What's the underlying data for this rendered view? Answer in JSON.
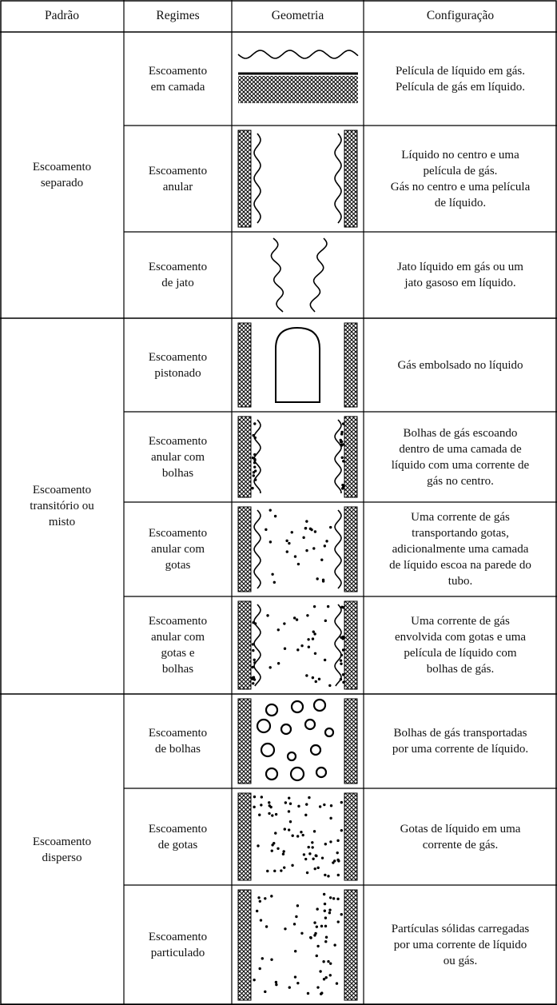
{
  "header": [
    "Padrão",
    "Regimes",
    "Geometria",
    "Configuração"
  ],
  "groups": [
    {
      "pattern": [
        "Escoamento",
        "separado"
      ],
      "rows": [
        {
          "regime": [
            "Escoamento",
            "em camada"
          ],
          "configuration": [
            "Película de líquido em gás.",
            "Película de gás em líquido."
          ]
        },
        {
          "regime": [
            "Escoamento",
            "anular"
          ],
          "configuration": [
            "Líquido no centro e uma",
            "película de gás.",
            "Gás no centro e uma película",
            "de líquido."
          ]
        },
        {
          "regime": [
            "Escoamento",
            "de jato"
          ],
          "configuration": [
            "Jato líquido em gás ou um",
            "jato gasoso em líquido."
          ]
        }
      ]
    },
    {
      "pattern": [
        "Escoamento",
        "transitório ou",
        "misto"
      ],
      "rows": [
        {
          "regime": [
            "Escoamento",
            "pistonado"
          ],
          "configuration": [
            "Gás embolsado no líquido"
          ]
        },
        {
          "regime": [
            "Escoamento",
            "anular com",
            "bolhas"
          ],
          "configuration": [
            "Bolhas de gás escoando",
            "dentro de uma camada de",
            "líquido com uma corrente de",
            "gás no centro."
          ]
        },
        {
          "regime": [
            "Escoamento",
            "anular com",
            "gotas"
          ],
          "configuration": [
            "Uma corrente de gás",
            "transportando gotas,",
            "adicionalmente uma camada",
            "de líquido escoa na parede do",
            "tubo."
          ]
        },
        {
          "regime": [
            "Escoamento",
            "anular com",
            "gotas e",
            "bolhas"
          ],
          "configuration": [
            "Uma corrente de gás",
            "envolvida com gotas e uma",
            "película de líquido com",
            "bolhas de gás."
          ]
        }
      ]
    },
    {
      "pattern": [
        "Escoamento",
        "disperso"
      ],
      "rows": [
        {
          "regime": [
            "Escoamento",
            "de bolhas"
          ],
          "configuration": [
            "Bolhas de gás transportadas",
            "por uma corrente de líquido."
          ]
        },
        {
          "regime": [
            "Escoamento",
            "de gotas"
          ],
          "configuration": [
            "Gotas de líquido em uma",
            "corrente de gás."
          ]
        },
        {
          "regime": [
            "Escoamento",
            "particulado"
          ],
          "configuration": [
            "Partículas sólidas carregadas",
            "por uma corrente de líquido",
            "ou gás."
          ]
        }
      ]
    }
  ]
}
